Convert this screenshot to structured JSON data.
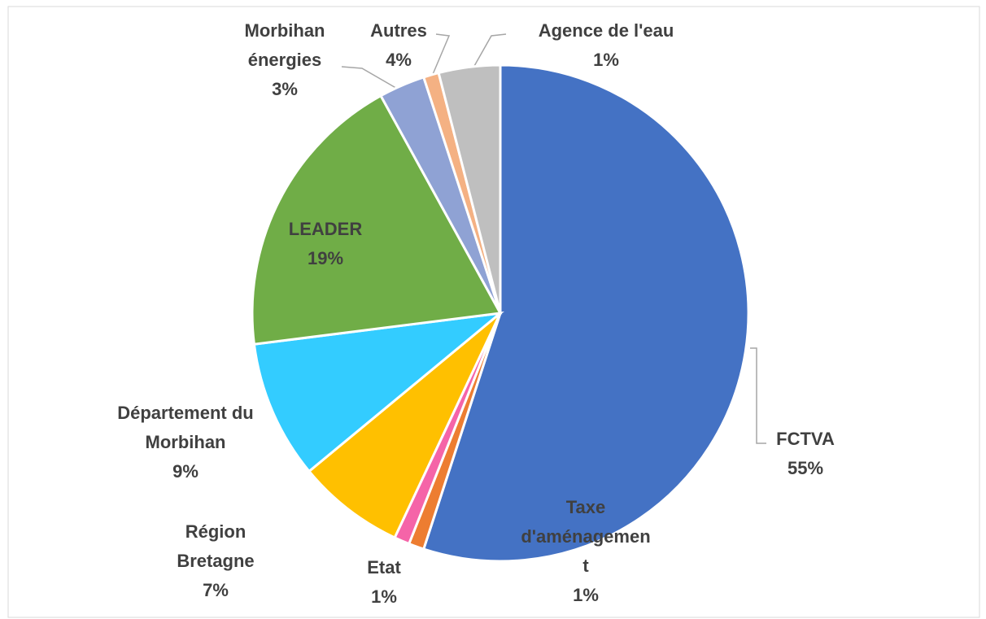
{
  "chart_data": {
    "type": "pie",
    "categories": [
      "FCTVA",
      "Taxe d'aménagement",
      "Etat",
      "Région Bretagne",
      "Département du Morbihan",
      "LEADER",
      "Morbihan énergies",
      "Agence de l'eau",
      "Autres"
    ],
    "values": [
      55,
      1,
      1,
      7,
      9,
      19,
      3,
      1,
      4
    ],
    "value_labels": [
      "55%",
      "1%",
      "1%",
      "7%",
      "9%",
      "19%",
      "3%",
      "1%",
      "4%"
    ],
    "colors": [
      "#4472c4",
      "#ed7d31",
      "#f564a8",
      "#ffc000",
      "#33ccff",
      "#70ad47",
      "#8fa2d4",
      "#f4b183",
      "#bfbfbf"
    ]
  }
}
